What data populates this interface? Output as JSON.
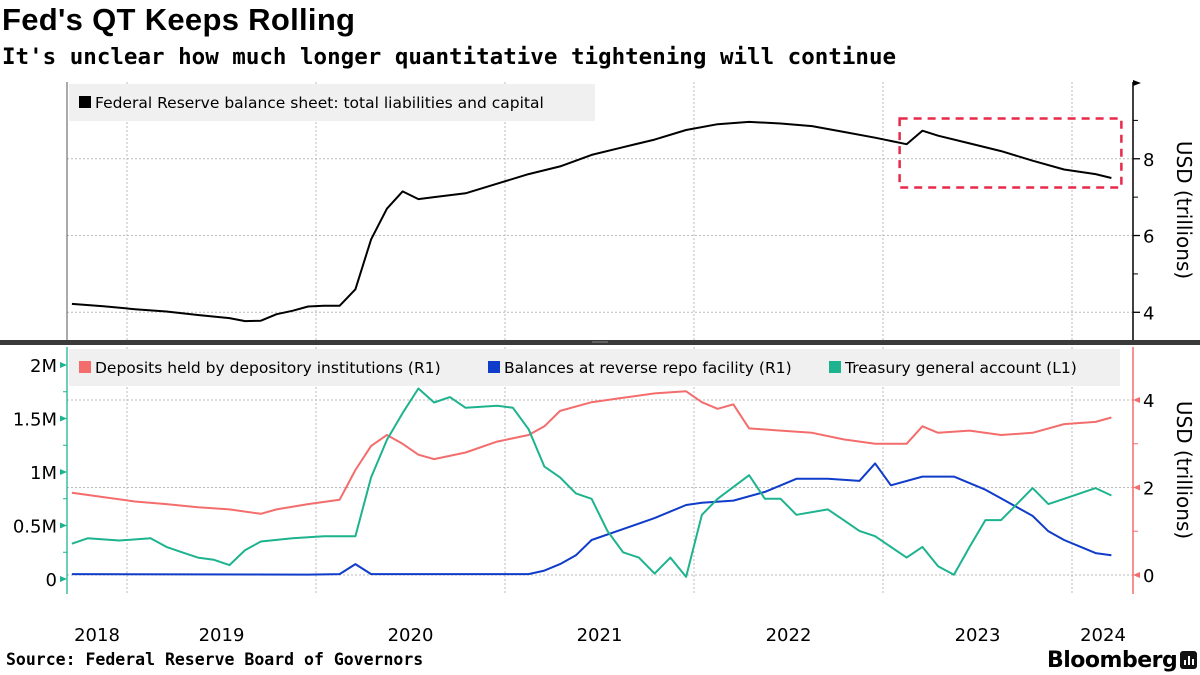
{
  "header": {
    "title": "Fed's QT Keeps Rolling",
    "subtitle": "It's unclear how much longer quantitative tightening will continue"
  },
  "footer": {
    "source": "Source: Federal Reserve Board of Governors",
    "brand": "Bloomberg"
  },
  "chart_data": [
    {
      "type": "line",
      "legend_placement": "top-left",
      "grid": true,
      "ylabel": "USD (trillions)",
      "ylim": [
        3.2,
        10
      ],
      "y_ticks": [
        "4",
        "6",
        "8"
      ],
      "y_tick_values": [
        4,
        6,
        8
      ],
      "colors": {
        "total": "#000000",
        "annotation": "#e8294a"
      },
      "annotation": {
        "type": "dashed-rectangle",
        "x_from": "2023-02",
        "x_to": "2024-03",
        "y_from": 7.25,
        "y_to": 9.05
      },
      "series": [
        {
          "name": "Federal Reserve balance sheet: total liabilities and capital",
          "axis": "right",
          "points": [
            [
              "2018-09",
              4.22
            ],
            [
              "2018-11",
              4.16
            ],
            [
              "2019-01",
              4.08
            ],
            [
              "2019-03",
              4.02
            ],
            [
              "2019-05",
              3.93
            ],
            [
              "2019-07",
              3.85
            ],
            [
              "2019-08",
              3.77
            ],
            [
              "2019-09",
              3.78
            ],
            [
              "2019-10",
              3.95
            ],
            [
              "2019-11",
              4.04
            ],
            [
              "2019-12",
              4.15
            ],
            [
              "2020-01",
              4.17
            ],
            [
              "2020-02",
              4.17
            ],
            [
              "2020-03",
              4.6
            ],
            [
              "2020-04",
              5.9
            ],
            [
              "2020-05",
              6.7
            ],
            [
              "2020-06",
              7.15
            ],
            [
              "2020-07",
              6.95
            ],
            [
              "2020-08",
              7.0
            ],
            [
              "2020-10",
              7.1
            ],
            [
              "2020-12",
              7.35
            ],
            [
              "2021-02",
              7.6
            ],
            [
              "2021-04",
              7.8
            ],
            [
              "2021-06",
              8.1
            ],
            [
              "2021-08",
              8.3
            ],
            [
              "2021-10",
              8.5
            ],
            [
              "2021-12",
              8.75
            ],
            [
              "2022-02",
              8.9
            ],
            [
              "2022-04",
              8.96
            ],
            [
              "2022-06",
              8.92
            ],
            [
              "2022-08",
              8.85
            ],
            [
              "2022-10",
              8.7
            ],
            [
              "2022-12",
              8.55
            ],
            [
              "2023-02",
              8.38
            ],
            [
              "2023-03",
              8.73
            ],
            [
              "2023-04",
              8.6
            ],
            [
              "2023-06",
              8.4
            ],
            [
              "2023-08",
              8.2
            ],
            [
              "2023-10",
              7.95
            ],
            [
              "2023-12",
              7.72
            ],
            [
              "2024-02",
              7.6
            ],
            [
              "2024-03",
              7.5
            ]
          ]
        }
      ]
    },
    {
      "type": "line",
      "legend_placement": "top",
      "grid": true,
      "ylabel_right": "USD (trillions)",
      "ylim_left": [
        -0.14,
        2.19
      ],
      "ylim_right": [
        -0.43,
        5.26
      ],
      "y_ticks_left": [
        "0",
        "0.5M",
        "1M",
        "1.5M",
        "2M"
      ],
      "y_tick_values_left": [
        0,
        0.5,
        1,
        1.5,
        2
      ],
      "y_ticks_right": [
        "0",
        "2",
        "4"
      ],
      "y_tick_values_right": [
        0,
        2,
        4
      ],
      "x_ticks": [
        "2018",
        "2019",
        "2020",
        "2021",
        "2022",
        "2023",
        "2024"
      ],
      "series": [
        {
          "name": "Deposits held by depository institutions (R1)",
          "axis": "right",
          "color": "#f46d6d",
          "points": [
            [
              "2018-09",
              1.88
            ],
            [
              "2018-11",
              1.78
            ],
            [
              "2019-01",
              1.68
            ],
            [
              "2019-03",
              1.62
            ],
            [
              "2019-05",
              1.55
            ],
            [
              "2019-07",
              1.5
            ],
            [
              "2019-09",
              1.4
            ],
            [
              "2019-10",
              1.5
            ],
            [
              "2019-12",
              1.62
            ],
            [
              "2020-02",
              1.72
            ],
            [
              "2020-03",
              2.4
            ],
            [
              "2020-04",
              2.95
            ],
            [
              "2020-05",
              3.2
            ],
            [
              "2020-06",
              3.0
            ],
            [
              "2020-07",
              2.75
            ],
            [
              "2020-08",
              2.65
            ],
            [
              "2020-10",
              2.8
            ],
            [
              "2020-12",
              3.05
            ],
            [
              "2021-02",
              3.2
            ],
            [
              "2021-03",
              3.4
            ],
            [
              "2021-04",
              3.75
            ],
            [
              "2021-06",
              3.95
            ],
            [
              "2021-08",
              4.05
            ],
            [
              "2021-10",
              4.15
            ],
            [
              "2021-12",
              4.2
            ],
            [
              "2022-01",
              3.95
            ],
            [
              "2022-02",
              3.8
            ],
            [
              "2022-03",
              3.9
            ],
            [
              "2022-04",
              3.35
            ],
            [
              "2022-06",
              3.3
            ],
            [
              "2022-08",
              3.25
            ],
            [
              "2022-10",
              3.1
            ],
            [
              "2022-12",
              3.0
            ],
            [
              "2023-02",
              3.0
            ],
            [
              "2023-03",
              3.4
            ],
            [
              "2023-04",
              3.25
            ],
            [
              "2023-06",
              3.3
            ],
            [
              "2023-08",
              3.2
            ],
            [
              "2023-10",
              3.25
            ],
            [
              "2023-12",
              3.45
            ],
            [
              "2024-02",
              3.5
            ],
            [
              "2024-03",
              3.6
            ]
          ]
        },
        {
          "name": "Balances at reverse repo facility (R1)",
          "axis": "right",
          "color": "#0f3cc9",
          "points": [
            [
              "2018-09",
              0.02
            ],
            [
              "2019-12",
              0.01
            ],
            [
              "2020-02",
              0.02
            ],
            [
              "2020-03",
              0.25
            ],
            [
              "2020-04",
              0.02
            ],
            [
              "2021-02",
              0.02
            ],
            [
              "2021-03",
              0.1
            ],
            [
              "2021-04",
              0.25
            ],
            [
              "2021-05",
              0.45
            ],
            [
              "2021-06",
              0.8
            ],
            [
              "2021-08",
              1.05
            ],
            [
              "2021-10",
              1.3
            ],
            [
              "2021-12",
              1.6
            ],
            [
              "2022-01",
              1.65
            ],
            [
              "2022-03",
              1.7
            ],
            [
              "2022-05",
              1.9
            ],
            [
              "2022-07",
              2.2
            ],
            [
              "2022-09",
              2.2
            ],
            [
              "2022-11",
              2.15
            ],
            [
              "2022-12",
              2.55
            ],
            [
              "2023-01",
              2.05
            ],
            [
              "2023-03",
              2.25
            ],
            [
              "2023-05",
              2.25
            ],
            [
              "2023-07",
              1.95
            ],
            [
              "2023-08",
              1.75
            ],
            [
              "2023-10",
              1.35
            ],
            [
              "2023-11",
              1.0
            ],
            [
              "2023-12",
              0.8
            ],
            [
              "2024-01",
              0.65
            ],
            [
              "2024-02",
              0.5
            ],
            [
              "2024-03",
              0.45
            ]
          ]
        },
        {
          "name": "Treasury general account  (L1)",
          "axis": "left",
          "color": "#1db38e",
          "points": [
            [
              "2018-09",
              0.33
            ],
            [
              "2018-10",
              0.38
            ],
            [
              "2018-12",
              0.36
            ],
            [
              "2019-02",
              0.38
            ],
            [
              "2019-03",
              0.3
            ],
            [
              "2019-04",
              0.25
            ],
            [
              "2019-05",
              0.2
            ],
            [
              "2019-06",
              0.18
            ],
            [
              "2019-07",
              0.13
            ],
            [
              "2019-08",
              0.27
            ],
            [
              "2019-09",
              0.35
            ],
            [
              "2019-11",
              0.38
            ],
            [
              "2020-01",
              0.4
            ],
            [
              "2020-03",
              0.4
            ],
            [
              "2020-04",
              0.95
            ],
            [
              "2020-05",
              1.3
            ],
            [
              "2020-06",
              1.55
            ],
            [
              "2020-07",
              1.78
            ],
            [
              "2020-08",
              1.65
            ],
            [
              "2020-09",
              1.7
            ],
            [
              "2020-10",
              1.6
            ],
            [
              "2020-12",
              1.62
            ],
            [
              "2021-01",
              1.6
            ],
            [
              "2021-02",
              1.4
            ],
            [
              "2021-03",
              1.05
            ],
            [
              "2021-04",
              0.95
            ],
            [
              "2021-05",
              0.8
            ],
            [
              "2021-06",
              0.75
            ],
            [
              "2021-07",
              0.45
            ],
            [
              "2021-08",
              0.25
            ],
            [
              "2021-09",
              0.2
            ],
            [
              "2021-10",
              0.05
            ],
            [
              "2021-11",
              0.2
            ],
            [
              "2021-12",
              0.02
            ],
            [
              "2022-01",
              0.6
            ],
            [
              "2022-02",
              0.75
            ],
            [
              "2022-04",
              0.97
            ],
            [
              "2022-05",
              0.75
            ],
            [
              "2022-06",
              0.75
            ],
            [
              "2022-07",
              0.6
            ],
            [
              "2022-09",
              0.65
            ],
            [
              "2022-10",
              0.55
            ],
            [
              "2022-11",
              0.45
            ],
            [
              "2022-12",
              0.4
            ],
            [
              "2023-02",
              0.2
            ],
            [
              "2023-03",
              0.3
            ],
            [
              "2023-04",
              0.12
            ],
            [
              "2023-05",
              0.04
            ],
            [
              "2023-06",
              0.3
            ],
            [
              "2023-07",
              0.55
            ],
            [
              "2023-08",
              0.55
            ],
            [
              "2023-09",
              0.7
            ],
            [
              "2023-10",
              0.85
            ],
            [
              "2023-11",
              0.7
            ],
            [
              "2023-12",
              0.75
            ],
            [
              "2024-01",
              0.8
            ],
            [
              "2024-02",
              0.85
            ],
            [
              "2024-03",
              0.78
            ]
          ]
        }
      ]
    }
  ]
}
